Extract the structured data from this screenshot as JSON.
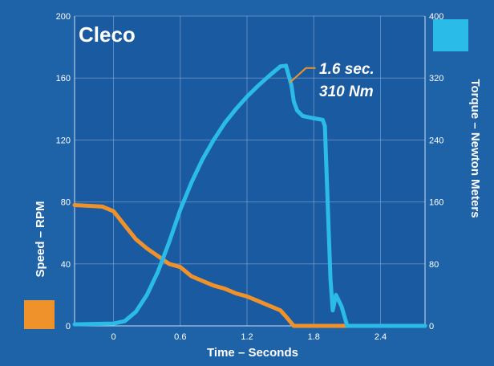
{
  "brand_label": "Cleco",
  "colors": {
    "background": "#1e62a8",
    "plot_bg": "#1a5aa0",
    "grid": "#8fb5de",
    "speed_series": "#f0922b",
    "torque_series": "#2bbbe8",
    "text": "#ffffff"
  },
  "chart_data": {
    "type": "line",
    "xlabel": "Time – Seconds",
    "ylabel_left": "Speed – RPM",
    "ylabel_right": "Torque – Newton Meters",
    "xlim": [
      -0.35,
      2.8
    ],
    "ylim_left": [
      0,
      200
    ],
    "ylim_right": [
      0,
      400
    ],
    "x_ticks": [
      "0",
      "0.6",
      "1.2",
      "1.8",
      "2.4"
    ],
    "x_tick_values": [
      0,
      0.6,
      1.2,
      1.8,
      2.4
    ],
    "y_ticks_left": [
      "0",
      "40",
      "80",
      "120",
      "160",
      "200"
    ],
    "y_tick_values_left": [
      0,
      40,
      80,
      120,
      160,
      200
    ],
    "y_ticks_right": [
      "0",
      "80",
      "160",
      "240",
      "320",
      "400"
    ],
    "y_tick_values_right": [
      0,
      80,
      160,
      240,
      320,
      400
    ],
    "grid": true,
    "legend": [
      "speed-marker-bottom-left",
      "torque-marker-top-right"
    ],
    "annotation": {
      "lines": [
        "1.6 sec.",
        "310 Nm"
      ],
      "x": 1.6,
      "y": 310
    },
    "series": [
      {
        "id": "speed",
        "axis": "left",
        "x": [
          -0.35,
          -0.1,
          0.0,
          0.1,
          0.2,
          0.3,
          0.4,
          0.5,
          0.6,
          0.7,
          0.8,
          0.9,
          1.0,
          1.1,
          1.2,
          1.3,
          1.4,
          1.5,
          1.55,
          1.62,
          1.7,
          2.0,
          2.4,
          2.8
        ],
        "y": [
          78,
          77,
          74,
          65,
          56,
          50,
          45,
          40,
          38,
          32,
          29,
          26,
          24,
          21,
          19,
          16,
          13,
          10,
          6,
          0,
          0,
          0,
          0,
          0
        ]
      },
      {
        "id": "torque",
        "axis": "right",
        "x": [
          -0.35,
          0.0,
          0.1,
          0.2,
          0.3,
          0.4,
          0.5,
          0.6,
          0.7,
          0.8,
          0.9,
          1.0,
          1.1,
          1.2,
          1.3,
          1.4,
          1.5,
          1.55,
          1.6,
          1.62,
          1.65,
          1.7,
          1.8,
          1.88,
          1.9,
          1.95,
          1.97,
          2.0,
          2.05,
          2.1,
          2.8
        ],
        "y": [
          2,
          3,
          6,
          18,
          40,
          70,
          108,
          150,
          185,
          215,
          240,
          262,
          280,
          296,
          310,
          323,
          335,
          336,
          310,
          290,
          278,
          271,
          268,
          266,
          258,
          60,
          20,
          40,
          25,
          0,
          0
        ]
      }
    ]
  }
}
